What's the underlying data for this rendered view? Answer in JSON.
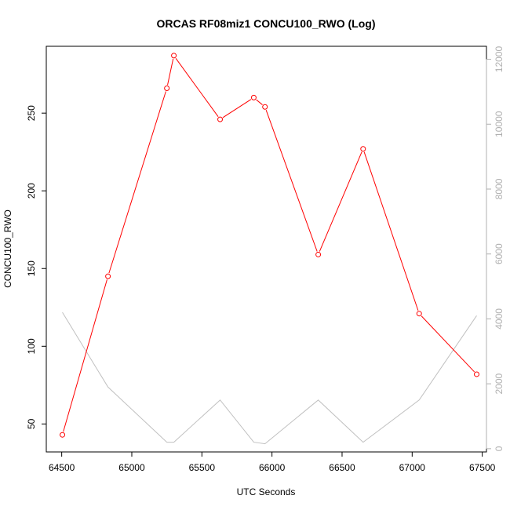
{
  "chart_data": {
    "type": "line",
    "title": "ORCAS RF08miz1 CONCU100_RWO (Log)",
    "xlabel": "UTC Seconds",
    "ylabel": "CONCU100_RWO",
    "xlim": [
      64390,
      67530
    ],
    "ylim": [
      32,
      293
    ],
    "xticks": [
      64500,
      65000,
      65500,
      66000,
      66500,
      67000,
      67500
    ],
    "yticks": [
      50,
      100,
      150,
      200,
      250
    ],
    "y2lim": [
      -100,
      12400
    ],
    "y2ticks": [
      0,
      2000,
      4000,
      6000,
      8000,
      10000,
      12000
    ],
    "colors": {
      "primary": "#ff0000",
      "secondary": "#c0c0c0",
      "secondary_ticks": "#b0b0b0"
    },
    "series": [
      {
        "axis": "left",
        "style": "line-with-open-circles",
        "x": [
          64505,
          64830,
          65250,
          65300,
          65630,
          65870,
          65950,
          66330,
          66650,
          67050,
          67460
        ],
        "y": [
          43,
          145,
          266,
          287,
          246,
          260,
          254,
          159,
          227,
          121,
          82
        ]
      },
      {
        "axis": "right",
        "style": "line",
        "x": [
          64505,
          64830,
          65250,
          65300,
          65630,
          65870,
          65950,
          66330,
          66650,
          67050,
          67460
        ],
        "y": [
          4200,
          1900,
          200,
          200,
          1500,
          200,
          150,
          1500,
          200,
          1500,
          4100
        ]
      }
    ]
  }
}
